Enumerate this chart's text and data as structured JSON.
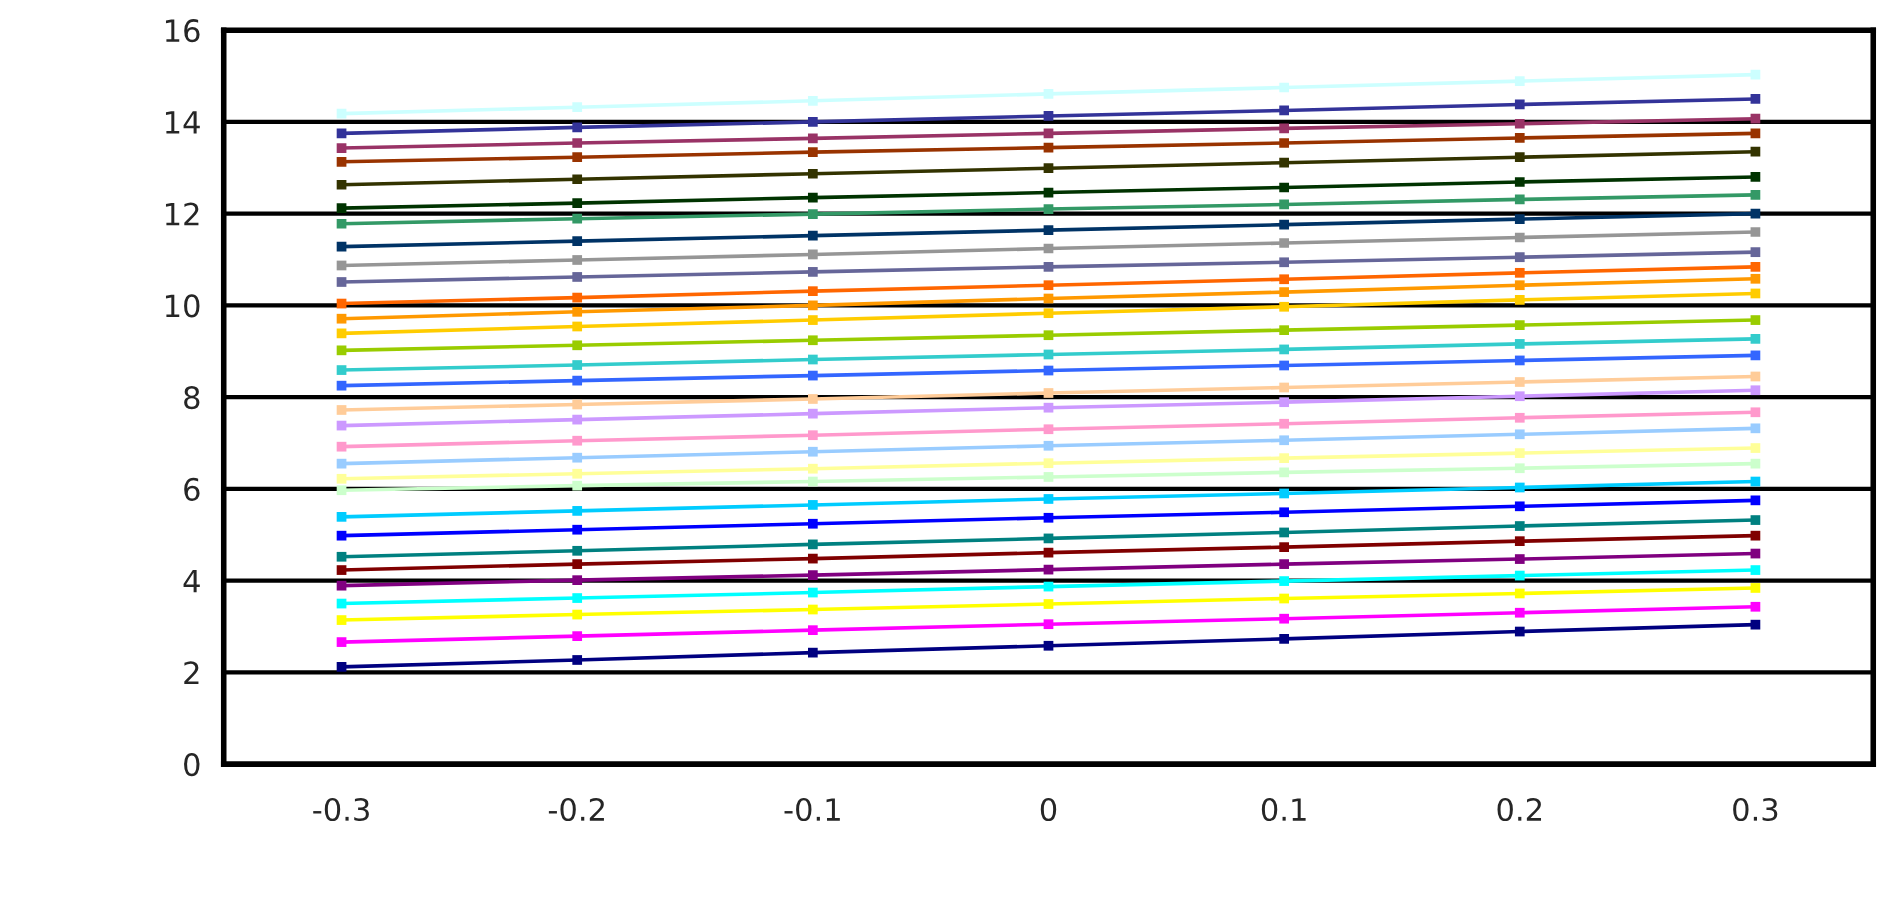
{
  "chart_data": {
    "type": "line",
    "categories": [
      "-0.3",
      "-0.2",
      "-0.1",
      "0",
      "0.1",
      "0.2",
      "0.3"
    ],
    "ylim": [
      0,
      16
    ],
    "yticks": [
      0,
      2,
      4,
      6,
      8,
      10,
      12,
      14,
      16
    ],
    "grid": "y",
    "marker": "square",
    "line_style": "solid",
    "series": [
      {
        "color": "#ccffff",
        "values": [
          14.18,
          14.32,
          14.46,
          14.61,
          14.75,
          14.89,
          15.03
        ]
      },
      {
        "color": "#333399",
        "values": [
          13.75,
          13.88,
          14.0,
          14.13,
          14.25,
          14.38,
          14.5
        ]
      },
      {
        "color": "#993366",
        "values": [
          13.43,
          13.54,
          13.64,
          13.75,
          13.86,
          13.96,
          14.07
        ]
      },
      {
        "color": "#993300",
        "values": [
          13.13,
          13.23,
          13.34,
          13.44,
          13.54,
          13.65,
          13.75
        ]
      },
      {
        "color": "#333300",
        "values": [
          12.63,
          12.75,
          12.87,
          12.99,
          13.11,
          13.23,
          13.35
        ]
      },
      {
        "color": "#003300",
        "values": [
          12.12,
          12.23,
          12.35,
          12.46,
          12.57,
          12.69,
          12.8
        ]
      },
      {
        "color": "#339966",
        "values": [
          11.78,
          11.89,
          11.99,
          12.1,
          12.2,
          12.31,
          12.41
        ]
      },
      {
        "color": "#003366",
        "values": [
          11.28,
          11.4,
          11.52,
          11.64,
          11.76,
          11.88,
          12.0
        ]
      },
      {
        "color": "#969696",
        "values": [
          10.87,
          10.99,
          11.11,
          11.24,
          11.36,
          11.48,
          11.6
        ]
      },
      {
        "color": "#666699",
        "values": [
          10.51,
          10.62,
          10.73,
          10.84,
          10.94,
          11.05,
          11.16
        ]
      },
      {
        "color": "#ff6600",
        "values": [
          10.04,
          10.17,
          10.31,
          10.44,
          10.57,
          10.71,
          10.84
        ]
      },
      {
        "color": "#ff9900",
        "values": [
          9.71,
          9.86,
          10.0,
          10.15,
          10.29,
          10.44,
          10.58
        ]
      },
      {
        "color": "#ffcc00",
        "values": [
          9.39,
          9.54,
          9.68,
          9.83,
          9.97,
          10.12,
          10.26
        ]
      },
      {
        "color": "#99cc00",
        "values": [
          9.02,
          9.13,
          9.24,
          9.35,
          9.46,
          9.57,
          9.68
        ]
      },
      {
        "color": "#33cccc",
        "values": [
          8.59,
          8.7,
          8.82,
          8.93,
          9.04,
          9.16,
          9.27
        ]
      },
      {
        "color": "#3366ff",
        "values": [
          8.25,
          8.36,
          8.47,
          8.58,
          8.69,
          8.8,
          8.91
        ]
      },
      {
        "color": "#ffcc99",
        "values": [
          7.72,
          7.84,
          7.96,
          8.09,
          8.21,
          8.33,
          8.45
        ]
      },
      {
        "color": "#cc99ff",
        "values": [
          7.38,
          7.51,
          7.64,
          7.77,
          7.89,
          8.02,
          8.15
        ]
      },
      {
        "color": "#ff99cc",
        "values": [
          6.92,
          7.05,
          7.17,
          7.3,
          7.42,
          7.55,
          7.67
        ]
      },
      {
        "color": "#99ccff",
        "values": [
          6.55,
          6.68,
          6.81,
          6.94,
          7.06,
          7.19,
          7.32
        ]
      },
      {
        "color": "#ffff99",
        "values": [
          6.22,
          6.33,
          6.44,
          6.56,
          6.67,
          6.78,
          6.89
        ]
      },
      {
        "color": "#ccffcc",
        "values": [
          5.97,
          6.07,
          6.16,
          6.26,
          6.36,
          6.45,
          6.55
        ]
      },
      {
        "color": "#00ccff",
        "values": [
          5.39,
          5.52,
          5.65,
          5.78,
          5.9,
          6.03,
          6.16
        ]
      },
      {
        "color": "#0000ff",
        "values": [
          4.98,
          5.11,
          5.24,
          5.37,
          5.49,
          5.62,
          5.75
        ]
      },
      {
        "color": "#008080",
        "values": [
          4.52,
          4.65,
          4.79,
          4.92,
          5.05,
          5.19,
          5.32
        ]
      },
      {
        "color": "#800000",
        "values": [
          4.23,
          4.36,
          4.48,
          4.61,
          4.73,
          4.86,
          4.98
        ]
      },
      {
        "color": "#800080",
        "values": [
          3.89,
          4.01,
          4.12,
          4.24,
          4.36,
          4.47,
          4.59
        ]
      },
      {
        "color": "#00ffff",
        "values": [
          3.5,
          3.62,
          3.74,
          3.87,
          3.99,
          4.11,
          4.23
        ]
      },
      {
        "color": "#ffff00",
        "values": [
          3.14,
          3.26,
          3.37,
          3.49,
          3.61,
          3.72,
          3.84
        ]
      },
      {
        "color": "#ff00ff",
        "values": [
          2.66,
          2.79,
          2.92,
          3.05,
          3.17,
          3.3,
          3.43
        ]
      },
      {
        "color": "#000080",
        "values": [
          2.12,
          2.27,
          2.43,
          2.58,
          2.73,
          2.89,
          3.04
        ]
      }
    ]
  }
}
